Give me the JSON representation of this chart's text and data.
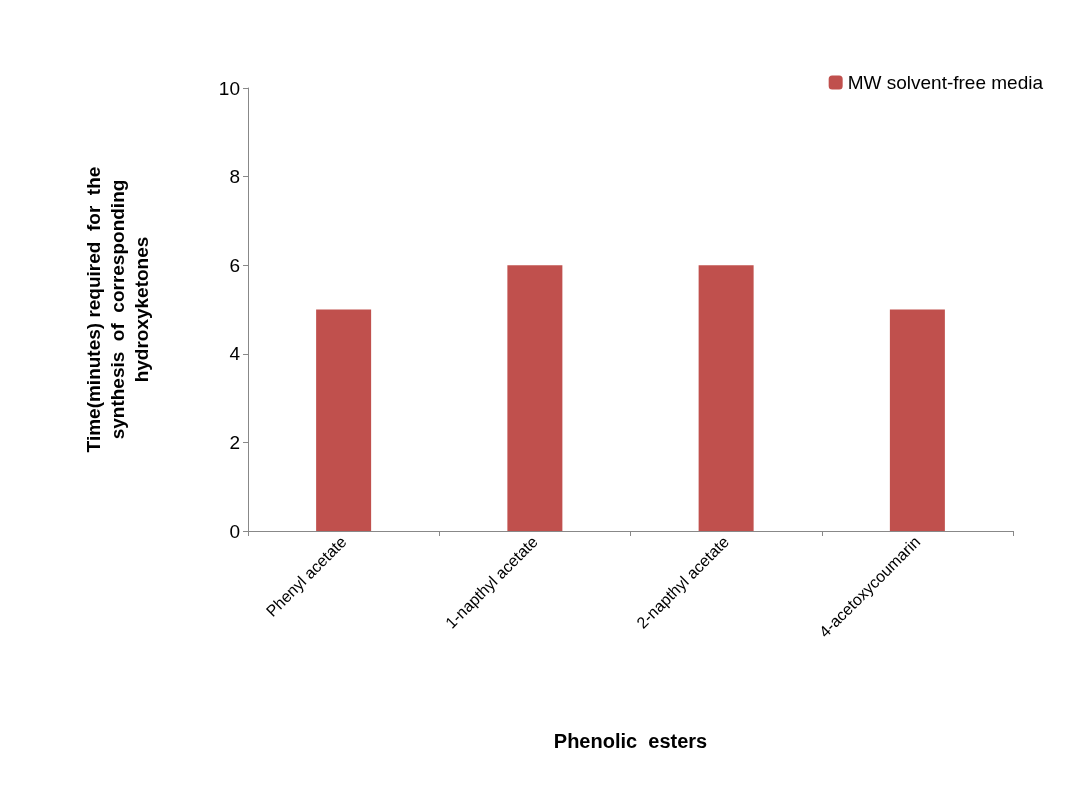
{
  "chart_data": {
    "type": "bar",
    "xlabel": "Phenolic  esters",
    "ylabel": "Time(minutes) required  for  the\nsynthesis  of  corresponding\nhydroxyketones",
    "categories": [
      "Phenyl acetate",
      "1-napthyl acetate",
      "2-napthyl acetate",
      "4-acetoxycoumarin"
    ],
    "series": [
      {
        "name": "MW solvent-free media",
        "color": "#c0504d",
        "values": [
          5,
          6,
          6,
          5
        ]
      }
    ],
    "ylim": [
      0,
      10
    ],
    "yticks": [
      0,
      2,
      4,
      6,
      8,
      10
    ],
    "grid": false,
    "legend": "top right"
  }
}
